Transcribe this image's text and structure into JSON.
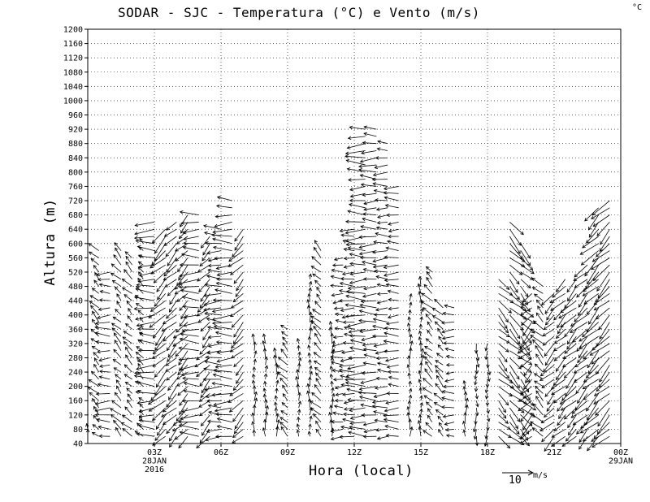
{
  "chart_data": {
    "type": "wind-barb-profile",
    "title": "SODAR - SJC - Temperatura (°C) e Vento (m/s)",
    "corner_unit": "°C",
    "xlabel": "Hora (local)",
    "ylabel": "Altura (m)",
    "ylim": [
      40,
      1200
    ],
    "xlim_hours": [
      0,
      24
    ],
    "y_ticks": [
      40,
      80,
      120,
      160,
      200,
      240,
      280,
      320,
      360,
      400,
      440,
      480,
      520,
      560,
      600,
      640,
      680,
      720,
      760,
      800,
      840,
      880,
      920,
      960,
      1000,
      1040,
      1080,
      1120,
      1160,
      1200
    ],
    "x_ticks": [
      {
        "hour": 3,
        "line1": "03Z",
        "line2": "28JAN",
        "line3": "2016"
      },
      {
        "hour": 6,
        "line1": "06Z"
      },
      {
        "hour": 9,
        "line1": "09Z"
      },
      {
        "hour": 12,
        "line1": "12Z"
      },
      {
        "hour": 15,
        "line1": "15Z"
      },
      {
        "hour": 18,
        "line1": "18Z"
      },
      {
        "hour": 21,
        "line1": "21Z"
      },
      {
        "hour": 24,
        "line1": "00Z",
        "line2": "29JAN"
      }
    ],
    "grid": "dotted",
    "reference_vector": {
      "label": "10",
      "unit": "m/s"
    },
    "profiles": [
      {
        "hour": 0.0,
        "top": 80,
        "dir": "N",
        "speed": 3
      },
      {
        "hour": 0.5,
        "top": 580,
        "dir": "NW",
        "speed": 4
      },
      {
        "hour": 1.0,
        "top": 520,
        "dir": "W",
        "speed": 5
      },
      {
        "hour": 1.5,
        "top": 580,
        "dir": "NW",
        "speed": 4
      },
      {
        "hour": 2.0,
        "top": 560,
        "dir": "NW",
        "speed": 4
      },
      {
        "hour": 2.5,
        "top": 600,
        "dir": "NW",
        "speed": 3
      },
      {
        "hour": 3.0,
        "top": 660,
        "dir": "W",
        "speed": 7
      },
      {
        "hour": 3.5,
        "top": 640,
        "dir": "SW",
        "speed": 7
      },
      {
        "hour": 4.0,
        "top": 660,
        "dir": "SW",
        "speed": 6
      },
      {
        "hour": 4.5,
        "top": 680,
        "dir": "SW",
        "speed": 6
      },
      {
        "hour": 5.0,
        "top": 680,
        "dir": "W",
        "speed": 7
      },
      {
        "hour": 5.5,
        "top": 620,
        "dir": "SW",
        "speed": 6
      },
      {
        "hour": 6.0,
        "top": 640,
        "dir": "W",
        "speed": 6
      },
      {
        "hour": 6.5,
        "top": 720,
        "dir": "W",
        "speed": 7
      },
      {
        "hour": 7.0,
        "top": 640,
        "dir": "SW",
        "speed": 6
      },
      {
        "hour": 7.5,
        "top": 320,
        "dir": "N",
        "speed": 3
      },
      {
        "hour": 8.0,
        "top": 320,
        "dir": "N",
        "speed": 3
      },
      {
        "hour": 8.5,
        "top": 280,
        "dir": "N",
        "speed": 3
      },
      {
        "hour": 9.0,
        "top": 360,
        "dir": "NW",
        "speed": 4
      },
      {
        "hour": 9.5,
        "top": 320,
        "dir": "N",
        "speed": 3
      },
      {
        "hour": 10.0,
        "top": 500,
        "dir": "N",
        "speed": 3
      },
      {
        "hour": 10.5,
        "top": 580,
        "dir": "NW",
        "speed": 4
      },
      {
        "hour": 11.0,
        "top": 360,
        "dir": "N",
        "speed": 3
      },
      {
        "hour": 11.5,
        "top": 560,
        "dir": "W",
        "speed": 4
      },
      {
        "hour": 12.0,
        "top": 640,
        "dir": "W",
        "speed": 5
      },
      {
        "hour": 12.5,
        "top": 920,
        "dir": "W",
        "speed": 7
      },
      {
        "hour": 13.0,
        "top": 920,
        "dir": "W",
        "speed": 6
      },
      {
        "hour": 13.5,
        "top": 880,
        "dir": "W",
        "speed": 5
      },
      {
        "hour": 14.0,
        "top": 760,
        "dir": "W",
        "speed": 5
      },
      {
        "hour": 14.5,
        "top": 440,
        "dir": "N",
        "speed": 3
      },
      {
        "hour": 15.0,
        "top": 480,
        "dir": "N",
        "speed": 3
      },
      {
        "hour": 15.5,
        "top": 520,
        "dir": "NW",
        "speed": 4
      },
      {
        "hour": 16.0,
        "top": 420,
        "dir": "NW",
        "speed": 4
      },
      {
        "hour": 16.5,
        "top": 420,
        "dir": "W",
        "speed": 4
      },
      {
        "hour": 17.0,
        "top": 200,
        "dir": "N",
        "speed": 3
      },
      {
        "hour": 17.5,
        "top": 320,
        "dir": "S",
        "speed": 3
      },
      {
        "hour": 18.0,
        "top": 320,
        "dir": "S",
        "speed": 3
      },
      {
        "hour": 18.5,
        "top": 500,
        "dir": "SE",
        "speed": 6
      },
      {
        "hour": 19.0,
        "top": 660,
        "dir": "SE",
        "speed": 7
      },
      {
        "hour": 19.5,
        "top": 600,
        "dir": "SE",
        "speed": 6
      },
      {
        "hour": 20.0,
        "top": 460,
        "dir": "SW",
        "speed": 6
      },
      {
        "hour": 20.5,
        "top": 480,
        "dir": "NW",
        "speed": 5
      },
      {
        "hour": 21.0,
        "top": 460,
        "dir": "SW",
        "speed": 6
      },
      {
        "hour": 21.5,
        "top": 500,
        "dir": "SW",
        "speed": 6
      },
      {
        "hour": 22.0,
        "top": 500,
        "dir": "SW",
        "speed": 7
      },
      {
        "hour": 22.5,
        "top": 540,
        "dir": "SW",
        "speed": 7
      },
      {
        "hour": 23.0,
        "top": 700,
        "dir": "SW",
        "speed": 8
      },
      {
        "hour": 23.5,
        "top": 720,
        "dir": "SW",
        "speed": 8
      }
    ]
  }
}
